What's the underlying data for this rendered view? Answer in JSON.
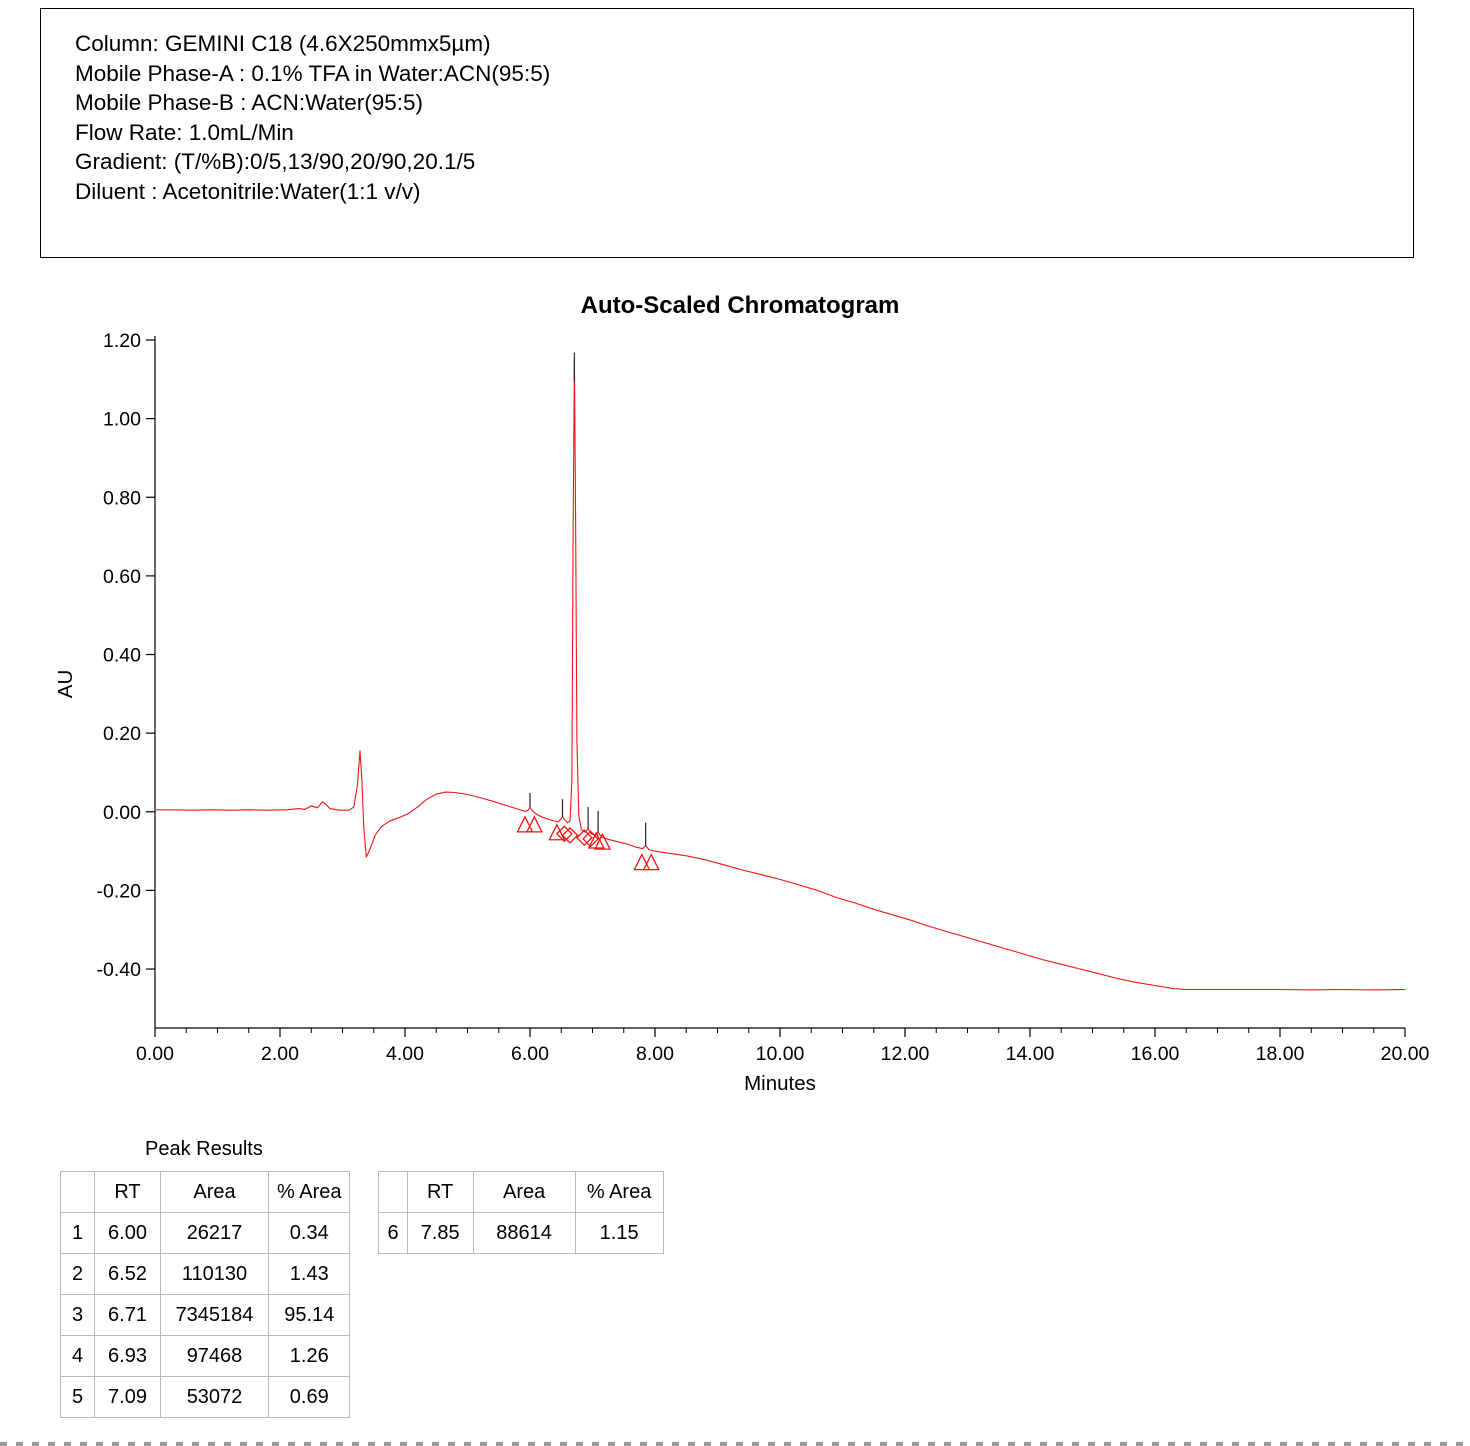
{
  "method_info": {
    "lines": [
      "Column: GEMINI C18 (4.6X250mmx5µm)",
      "Mobile Phase-A : 0.1% TFA in Water:ACN(95:5)",
      "Mobile Phase-B : ACN:Water(95:5)",
      "Flow Rate: 1.0mL/Min",
      "Gradient: (T/%B):0/5,13/90,20/90,20.1/5",
      "Diluent : Acetonitrile:Water(1:1 v/v)"
    ]
  },
  "chart_data": {
    "type": "line",
    "title": "Auto-Scaled Chromatogram",
    "xlabel": "Minutes",
    "ylabel": "AU",
    "xlim": [
      0,
      20
    ],
    "ylim": [
      -0.55,
      1.2
    ],
    "line_color": "#f01515",
    "grid": false,
    "x_ticks": [
      {
        "v": 0,
        "label": "0.00"
      },
      {
        "v": 2,
        "label": "2.00"
      },
      {
        "v": 4,
        "label": "4.00"
      },
      {
        "v": 6,
        "label": "6.00"
      },
      {
        "v": 8,
        "label": "8.00"
      },
      {
        "v": 10,
        "label": "10.00"
      },
      {
        "v": 12,
        "label": "12.00"
      },
      {
        "v": 14,
        "label": "14.00"
      },
      {
        "v": 16,
        "label": "16.00"
      },
      {
        "v": 18,
        "label": "18.00"
      },
      {
        "v": 20,
        "label": "20.00"
      }
    ],
    "x_minor_step": 0.5,
    "y_ticks": [
      {
        "v": 1.2,
        "label": "1.20"
      },
      {
        "v": 1.0,
        "label": "1.00"
      },
      {
        "v": 0.8,
        "label": "0.80"
      },
      {
        "v": 0.6,
        "label": "0.60"
      },
      {
        "v": 0.4,
        "label": "0.40"
      },
      {
        "v": 0.2,
        "label": "0.20"
      },
      {
        "v": 0.0,
        "label": "0.00"
      },
      {
        "v": -0.2,
        "label": "-0.20"
      },
      {
        "v": -0.4,
        "label": "-0.40"
      }
    ],
    "series": [
      {
        "name": "chromatogram",
        "points": [
          [
            0.0,
            0.005
          ],
          [
            0.3,
            0.005
          ],
          [
            0.6,
            0.004
          ],
          [
            0.9,
            0.005
          ],
          [
            1.2,
            0.004
          ],
          [
            1.5,
            0.005
          ],
          [
            1.8,
            0.004
          ],
          [
            2.1,
            0.005
          ],
          [
            2.3,
            0.008
          ],
          [
            2.4,
            0.006
          ],
          [
            2.5,
            0.015
          ],
          [
            2.6,
            0.01
          ],
          [
            2.68,
            0.025
          ],
          [
            2.74,
            0.018
          ],
          [
            2.8,
            0.008
          ],
          [
            2.95,
            0.004
          ],
          [
            3.1,
            0.004
          ],
          [
            3.18,
            0.012
          ],
          [
            3.24,
            0.07
          ],
          [
            3.28,
            0.155
          ],
          [
            3.31,
            0.08
          ],
          [
            3.34,
            -0.04
          ],
          [
            3.38,
            -0.115
          ],
          [
            3.44,
            -0.095
          ],
          [
            3.52,
            -0.06
          ],
          [
            3.62,
            -0.038
          ],
          [
            3.75,
            -0.024
          ],
          [
            3.9,
            -0.015
          ],
          [
            4.05,
            -0.005
          ],
          [
            4.2,
            0.012
          ],
          [
            4.35,
            0.032
          ],
          [
            4.5,
            0.045
          ],
          [
            4.65,
            0.05
          ],
          [
            4.8,
            0.049
          ],
          [
            5.0,
            0.044
          ],
          [
            5.2,
            0.036
          ],
          [
            5.4,
            0.027
          ],
          [
            5.6,
            0.017
          ],
          [
            5.8,
            0.007
          ],
          [
            5.92,
            0.001
          ],
          [
            5.97,
            0.004
          ],
          [
            6.0,
            0.012
          ],
          [
            6.03,
            0.004
          ],
          [
            6.1,
            -0.006
          ],
          [
            6.2,
            -0.014
          ],
          [
            6.35,
            -0.022
          ],
          [
            6.45,
            -0.026
          ],
          [
            6.5,
            -0.018
          ],
          [
            6.52,
            -0.012
          ],
          [
            6.55,
            -0.02
          ],
          [
            6.6,
            -0.028
          ],
          [
            6.64,
            -0.024
          ],
          [
            6.67,
            0.08
          ],
          [
            6.69,
            0.7
          ],
          [
            6.71,
            1.15
          ],
          [
            6.73,
            0.75
          ],
          [
            6.75,
            0.18
          ],
          [
            6.78,
            -0.01
          ],
          [
            6.82,
            -0.045
          ],
          [
            6.88,
            -0.052
          ],
          [
            6.93,
            -0.043
          ],
          [
            6.98,
            -0.056
          ],
          [
            7.04,
            -0.06
          ],
          [
            7.09,
            -0.052
          ],
          [
            7.14,
            -0.064
          ],
          [
            7.25,
            -0.07
          ],
          [
            7.4,
            -0.076
          ],
          [
            7.55,
            -0.082
          ],
          [
            7.7,
            -0.09
          ],
          [
            7.8,
            -0.094
          ],
          [
            7.85,
            -0.086
          ],
          [
            7.9,
            -0.096
          ],
          [
            8.0,
            -0.1
          ],
          [
            8.2,
            -0.105
          ],
          [
            8.5,
            -0.112
          ],
          [
            8.8,
            -0.122
          ],
          [
            9.1,
            -0.135
          ],
          [
            9.4,
            -0.148
          ],
          [
            9.7,
            -0.16
          ],
          [
            10.0,
            -0.172
          ],
          [
            10.3,
            -0.186
          ],
          [
            10.6,
            -0.2
          ],
          [
            10.9,
            -0.218
          ],
          [
            11.2,
            -0.232
          ],
          [
            11.5,
            -0.248
          ],
          [
            11.8,
            -0.262
          ],
          [
            12.1,
            -0.276
          ],
          [
            12.4,
            -0.292
          ],
          [
            12.7,
            -0.306
          ],
          [
            13.0,
            -0.32
          ],
          [
            13.3,
            -0.334
          ],
          [
            13.6,
            -0.348
          ],
          [
            13.9,
            -0.362
          ],
          [
            14.2,
            -0.376
          ],
          [
            14.5,
            -0.388
          ],
          [
            14.8,
            -0.4
          ],
          [
            15.1,
            -0.412
          ],
          [
            15.4,
            -0.424
          ],
          [
            15.7,
            -0.434
          ],
          [
            16.0,
            -0.442
          ],
          [
            16.3,
            -0.45
          ],
          [
            16.5,
            -0.452
          ],
          [
            17.0,
            -0.452
          ],
          [
            17.5,
            -0.452
          ],
          [
            18.0,
            -0.452
          ],
          [
            18.5,
            -0.453
          ],
          [
            19.0,
            -0.452
          ],
          [
            19.5,
            -0.453
          ],
          [
            20.0,
            -0.452
          ]
        ]
      }
    ],
    "apex_ticks": [
      [
        6.0,
        0.012,
        0.048
      ],
      [
        6.52,
        -0.012,
        0.032
      ],
      [
        6.71,
        1.095,
        1.168
      ],
      [
        6.93,
        -0.043,
        0.012
      ],
      [
        7.09,
        -0.052,
        0.002
      ],
      [
        7.85,
        -0.086,
        -0.028
      ]
    ],
    "peak_markers": [
      {
        "x": 5.92,
        "y": -0.032,
        "t": "tri"
      },
      {
        "x": 6.07,
        "y": -0.032,
        "t": "tri"
      },
      {
        "x": 6.43,
        "y": -0.052,
        "t": "tri"
      },
      {
        "x": 6.55,
        "y": -0.056,
        "t": "dia"
      },
      {
        "x": 6.64,
        "y": -0.06,
        "t": "dia"
      },
      {
        "x": 6.87,
        "y": -0.066,
        "t": "dia"
      },
      {
        "x": 6.97,
        "y": -0.069,
        "t": "dia"
      },
      {
        "x": 7.06,
        "y": -0.073,
        "t": "tri"
      },
      {
        "x": 7.16,
        "y": -0.076,
        "t": "tri"
      },
      {
        "x": 7.79,
        "y": -0.128,
        "t": "tri"
      },
      {
        "x": 7.94,
        "y": -0.128,
        "t": "tri"
      }
    ]
  },
  "peak_results": {
    "title": "Peak Results",
    "columns": [
      "",
      "RT",
      "Area",
      "% Area"
    ],
    "table1_rows": [
      [
        "1",
        "6.00",
        "26217",
        "0.34"
      ],
      [
        "2",
        "6.52",
        "110130",
        "1.43"
      ],
      [
        "3",
        "6.71",
        "7345184",
        "95.14"
      ],
      [
        "4",
        "6.93",
        "97468",
        "1.26"
      ],
      [
        "5",
        "7.09",
        "53072",
        "0.69"
      ]
    ],
    "table2_rows": [
      [
        "6",
        "7.85",
        "88614",
        "1.15"
      ]
    ]
  }
}
